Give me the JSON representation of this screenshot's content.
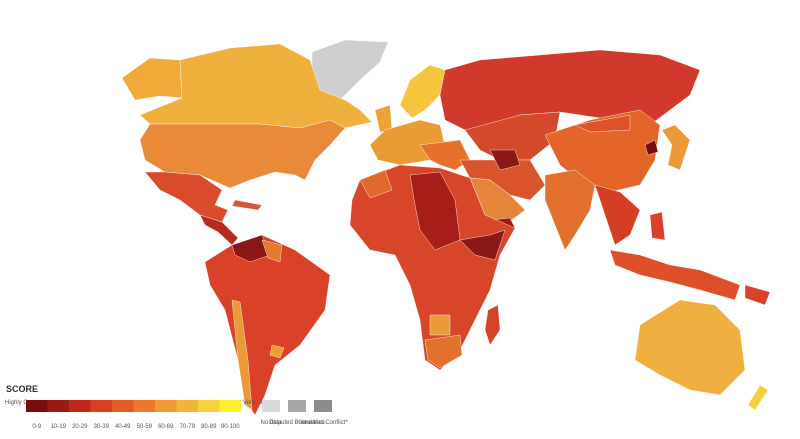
{
  "legend": {
    "title": "SCORE",
    "low_label": "Highly Corrupt",
    "high_label": "Very Clean",
    "ranges": [
      {
        "label": "0-9",
        "color": "#7a0c0c"
      },
      {
        "label": "10-19",
        "color": "#9c1a14"
      },
      {
        "label": "20-29",
        "color": "#c0261c"
      },
      {
        "label": "30-39",
        "color": "#d63f22"
      },
      {
        "label": "40-49",
        "color": "#e35a26"
      },
      {
        "label": "50-59",
        "color": "#ea7a2c"
      },
      {
        "label": "60-69",
        "color": "#ef9a33"
      },
      {
        "label": "70-79",
        "color": "#f3b43a"
      },
      {
        "label": "80-89",
        "color": "#f8d23a"
      },
      {
        "label": "90-100",
        "color": "#fdf12f"
      }
    ],
    "other": [
      {
        "label": "No data",
        "color": "#d9d9d9"
      },
      {
        "label": "Disputed Boundaries",
        "color": "#a6a6a6"
      },
      {
        "label": "Unsettled Conflict*",
        "color": "#8c8c8c"
      }
    ]
  }
}
